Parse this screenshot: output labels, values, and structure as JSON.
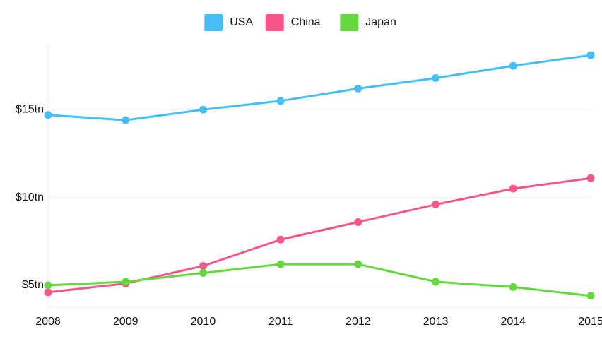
{
  "chart_data": {
    "type": "line",
    "x": [
      2008,
      2009,
      2010,
      2011,
      2012,
      2013,
      2014,
      2015
    ],
    "xlim": [
      2008,
      2015
    ],
    "xticks": [
      2008,
      2009,
      2010,
      2011,
      2012,
      2013,
      2014,
      2015
    ],
    "ylim": [
      3.75,
      18.75
    ],
    "yticks": [
      {
        "value": 5,
        "label": "$5tn"
      },
      {
        "value": 10,
        "label": "$10tn"
      },
      {
        "value": 15,
        "label": "$15tn"
      }
    ],
    "grid": true,
    "legend": "top",
    "series": [
      {
        "name": "USA",
        "color": "#45bff5",
        "values": [
          14.7,
          14.4,
          15.0,
          15.5,
          16.2,
          16.8,
          17.5,
          18.1
        ]
      },
      {
        "name": "China",
        "color": "#f7568b",
        "values": [
          4.6,
          5.1,
          6.1,
          7.6,
          8.6,
          9.6,
          10.5,
          11.1
        ]
      },
      {
        "name": "Japan",
        "color": "#65d83f",
        "values": [
          5.0,
          5.2,
          5.7,
          6.2,
          6.2,
          5.2,
          4.9,
          4.4
        ]
      }
    ]
  }
}
